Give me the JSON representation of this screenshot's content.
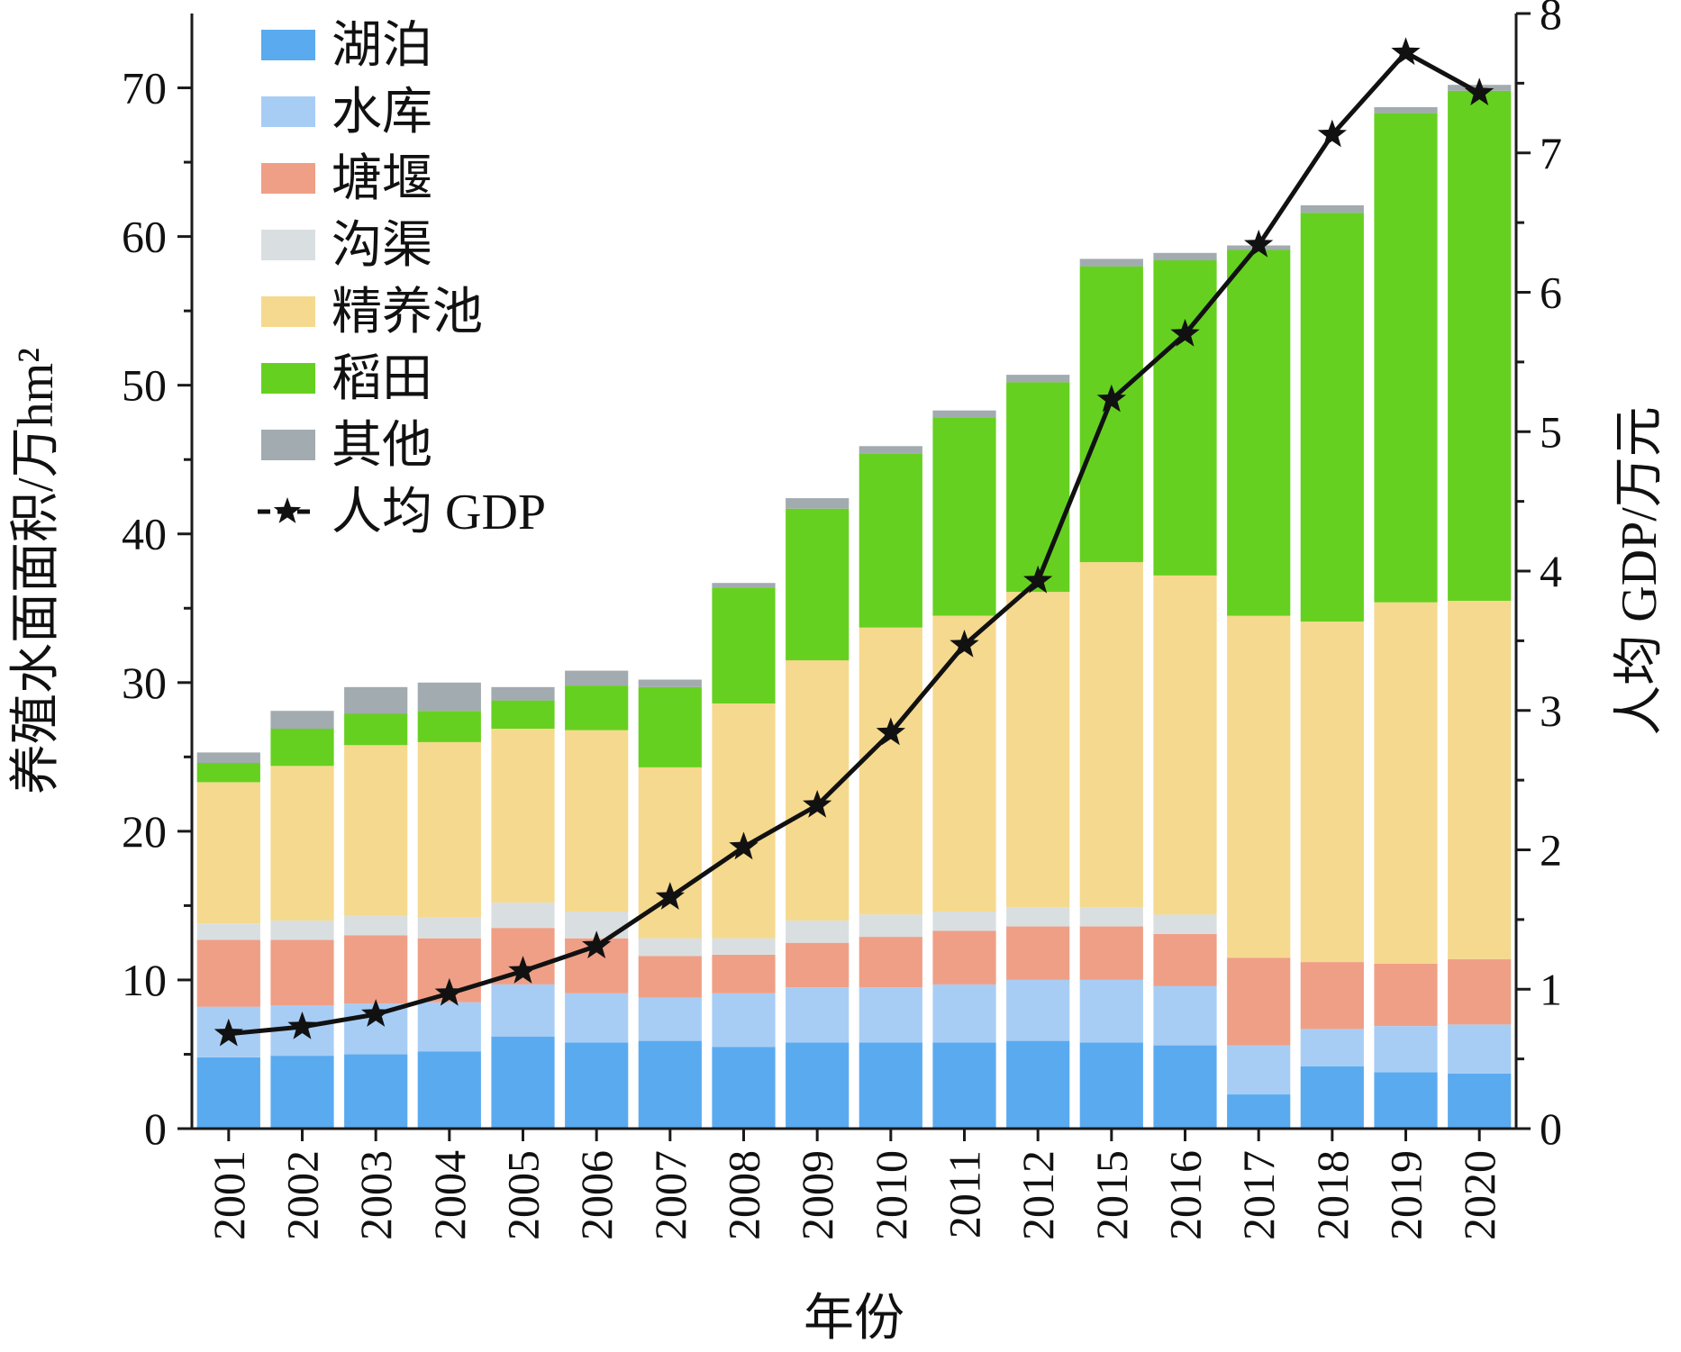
{
  "chart_data": {
    "type": "bar",
    "stacked": true,
    "categories": [
      "2001",
      "2002",
      "2003",
      "2004",
      "2005",
      "2006",
      "2007",
      "2008",
      "2009",
      "2010",
      "2011",
      "2012",
      "2015",
      "2016",
      "2017",
      "2018",
      "2019",
      "2020"
    ],
    "series": [
      {
        "name": "湖泊",
        "color": "#5aaaf0",
        "values": [
          4.8,
          4.9,
          5.0,
          5.2,
          6.2,
          5.8,
          5.9,
          5.5,
          5.8,
          5.8,
          5.8,
          5.9,
          5.8,
          5.6,
          2.3,
          4.2,
          3.8,
          3.7
        ]
      },
      {
        "name": "水库",
        "color": "#a8cdf5",
        "values": [
          3.4,
          3.4,
          3.4,
          3.3,
          3.5,
          3.3,
          2.9,
          3.6,
          3.7,
          3.7,
          3.9,
          4.1,
          4.2,
          4.0,
          3.3,
          2.5,
          3.1,
          3.3
        ]
      },
      {
        "name": "塘堰",
        "color": "#ef9f86",
        "values": [
          4.5,
          4.4,
          4.6,
          4.3,
          3.8,
          3.7,
          2.8,
          2.6,
          3.0,
          3.4,
          3.6,
          3.6,
          3.6,
          3.5,
          5.9,
          4.5,
          4.2,
          4.4
        ]
      },
      {
        "name": "沟渠",
        "color": "#d9dfe0",
        "values": [
          1.1,
          1.3,
          1.3,
          1.4,
          1.7,
          1.8,
          1.2,
          1.1,
          1.5,
          1.5,
          1.3,
          1.3,
          1.3,
          1.3,
          0,
          0,
          0,
          0
        ]
      },
      {
        "name": "精养池",
        "color": "#f5d98e",
        "values": [
          9.5,
          10.4,
          11.5,
          11.8,
          11.7,
          12.2,
          11.5,
          15.8,
          17.5,
          19.3,
          19.9,
          21.2,
          23.2,
          22.8,
          23.0,
          22.9,
          24.3,
          24.1
        ]
      },
      {
        "name": "稻田",
        "color": "#66d020",
        "values": [
          1.3,
          2.5,
          2.1,
          2.1,
          1.9,
          3.0,
          5.4,
          7.8,
          10.2,
          11.7,
          13.3,
          14.1,
          19.9,
          21.2,
          24.6,
          27.5,
          32.9,
          34.3
        ]
      },
      {
        "name": "其他",
        "color": "#a2abaf",
        "values": [
          0.7,
          1.2,
          1.8,
          1.9,
          0.9,
          1.0,
          0.5,
          0.3,
          0.7,
          0.5,
          0.5,
          0.5,
          0.5,
          0.5,
          0.3,
          0.5,
          0.4,
          0.4
        ]
      }
    ],
    "line_series": {
      "name": "人均 GDP",
      "color": "#111111",
      "marker": "star",
      "axis": "right",
      "values": [
        0.68,
        0.73,
        0.82,
        0.97,
        1.13,
        1.31,
        1.66,
        2.02,
        2.32,
        2.84,
        3.47,
        3.93,
        5.23,
        5.7,
        6.34,
        7.13,
        7.72,
        7.43
      ]
    },
    "xlabel": "年份",
    "ylabel": "养殖水面面积/万hm²",
    "y2label": "人均 GDP/万元",
    "ylim": [
      0,
      75
    ],
    "y2lim": [
      0,
      8
    ],
    "yticks": [
      0,
      10,
      20,
      30,
      40,
      50,
      60,
      70
    ],
    "y2ticks": [
      0,
      1,
      2,
      3,
      4,
      5,
      6,
      7,
      8
    ],
    "grid": false,
    "legend_position": "top-left"
  }
}
